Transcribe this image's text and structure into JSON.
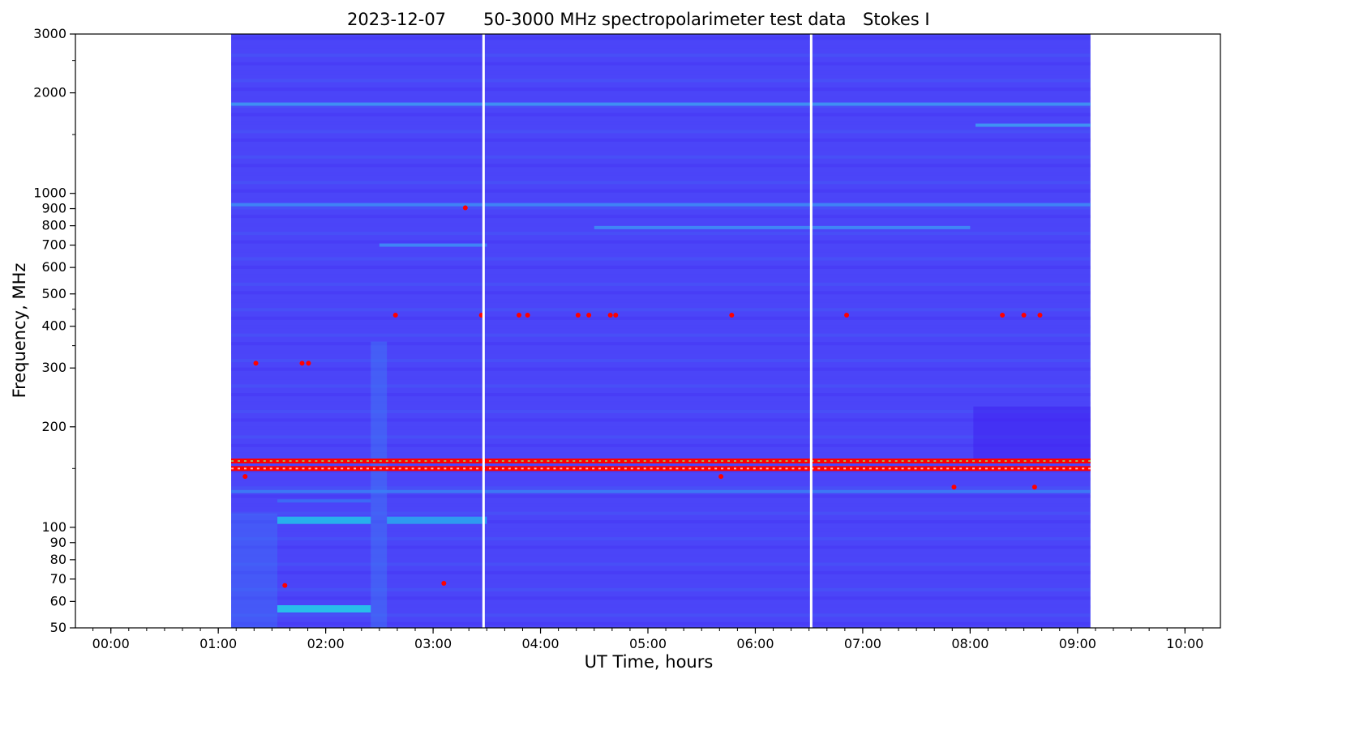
{
  "chart_data": {
    "type": "heatmap",
    "title_parts": [
      "2023-12-07",
      "50-3000 MHz spectropolarimeter test data",
      "Stokes I"
    ],
    "xlabel": "UT Time, hours",
    "ylabel": "Frequency, MHz",
    "x_scale": "time-hours",
    "y_scale": "log",
    "xlim": [
      -0.33,
      10.33
    ],
    "ylim": [
      50,
      3000
    ],
    "x_ticks": [
      {
        "value": 0,
        "label": "00:00"
      },
      {
        "value": 1,
        "label": "01:00"
      },
      {
        "value": 2,
        "label": "02:00"
      },
      {
        "value": 3,
        "label": "03:00"
      },
      {
        "value": 4,
        "label": "04:00"
      },
      {
        "value": 5,
        "label": "05:00"
      },
      {
        "value": 6,
        "label": "06:00"
      },
      {
        "value": 7,
        "label": "07:00"
      },
      {
        "value": 8,
        "label": "08:00"
      },
      {
        "value": 9,
        "label": "09:00"
      },
      {
        "value": 10,
        "label": "10:00"
      }
    ],
    "y_ticks_labeled": [
      {
        "value": 50,
        "label": "50"
      },
      {
        "value": 60,
        "label": "60"
      },
      {
        "value": 70,
        "label": "70"
      },
      {
        "value": 80,
        "label": "80"
      },
      {
        "value": 90,
        "label": "90"
      },
      {
        "value": 100,
        "label": "100"
      },
      {
        "value": 200,
        "label": "200"
      },
      {
        "value": 300,
        "label": "300"
      },
      {
        "value": 400,
        "label": "400"
      },
      {
        "value": 500,
        "label": "500"
      },
      {
        "value": 600,
        "label": "600"
      },
      {
        "value": 700,
        "label": "700"
      },
      {
        "value": 800,
        "label": "800"
      },
      {
        "value": 900,
        "label": "900"
      },
      {
        "value": 1000,
        "label": "1000"
      },
      {
        "value": 2000,
        "label": "2000"
      },
      {
        "value": 3000,
        "label": "3000"
      }
    ],
    "y_ticks_minor": [
      150,
      350,
      450,
      1500,
      2500
    ],
    "data_time_range": [
      1.12,
      9.12
    ],
    "segment_breaks": [
      1.55,
      2.42,
      2.57,
      8.03
    ],
    "gaps": [
      3.47,
      6.52
    ],
    "background_color": "#4b45f8",
    "colormap": [
      "#3e1ef0",
      "#4b45f8",
      "#3d7df5",
      "#22d3e8",
      "#80ff80",
      "#ffd000",
      "#ff0000"
    ],
    "bands": [
      {
        "freq": 158,
        "time_range": [
          1.12,
          9.12
        ],
        "intensity": "max",
        "color": "#ff0000"
      },
      {
        "freq": 150,
        "time_range": [
          1.12,
          9.12
        ],
        "intensity": "max",
        "color": "#ff0000"
      },
      {
        "freq": 1850,
        "time_range": [
          1.12,
          9.12
        ],
        "intensity": "medium",
        "color": "#3d9bf2"
      },
      {
        "freq": 1600,
        "time_range": [
          8.05,
          9.12
        ],
        "intensity": "medium",
        "color": "#3da0f2"
      },
      {
        "freq": 925,
        "time_range": [
          1.12,
          9.12
        ],
        "intensity": "medium",
        "color": "#3d8ef4"
      },
      {
        "freq": 790,
        "time_range": [
          4.5,
          8.0
        ],
        "intensity": "medium",
        "color": "#3d90f4"
      },
      {
        "freq": 700,
        "time_range": [
          2.5,
          3.5
        ],
        "intensity": "medium",
        "color": "#3d90f4"
      },
      {
        "freq": 128,
        "time_range": [
          1.12,
          9.12
        ],
        "intensity": "medium",
        "color": "#3a80f5"
      },
      {
        "freq": 105,
        "time_range": [
          1.55,
          2.42
        ],
        "intensity": "high",
        "color": "#22c4ea"
      },
      {
        "freq": 105,
        "time_range": [
          2.57,
          3.5
        ],
        "intensity": "high",
        "color": "#2aa9ee"
      },
      {
        "freq": 57,
        "time_range": [
          1.55,
          2.42
        ],
        "intensity": "high",
        "color": "#22d3e8"
      },
      {
        "freq": 120,
        "time_range": [
          1.55,
          2.42
        ],
        "intensity": "medium",
        "color": "#3a70f5"
      }
    ],
    "spots": [
      {
        "time": 1.35,
        "freq": 310
      },
      {
        "time": 1.78,
        "freq": 310
      },
      {
        "time": 1.84,
        "freq": 310
      },
      {
        "time": 2.65,
        "freq": 432
      },
      {
        "time": 3.45,
        "freq": 432
      },
      {
        "time": 3.8,
        "freq": 432
      },
      {
        "time": 3.88,
        "freq": 432
      },
      {
        "time": 4.35,
        "freq": 432
      },
      {
        "time": 4.45,
        "freq": 432
      },
      {
        "time": 4.65,
        "freq": 432
      },
      {
        "time": 4.7,
        "freq": 432
      },
      {
        "time": 5.78,
        "freq": 432
      },
      {
        "time": 6.85,
        "freq": 432
      },
      {
        "time": 8.3,
        "freq": 432
      },
      {
        "time": 8.5,
        "freq": 432
      },
      {
        "time": 8.65,
        "freq": 432
      },
      {
        "time": 3.3,
        "freq": 905
      },
      {
        "time": 1.62,
        "freq": 67
      },
      {
        "time": 3.1,
        "freq": 68
      },
      {
        "time": 5.68,
        "freq": 142
      },
      {
        "time": 7.85,
        "freq": 132
      },
      {
        "time": 8.6,
        "freq": 132
      },
      {
        "time": 1.25,
        "freq": 142
      }
    ]
  }
}
